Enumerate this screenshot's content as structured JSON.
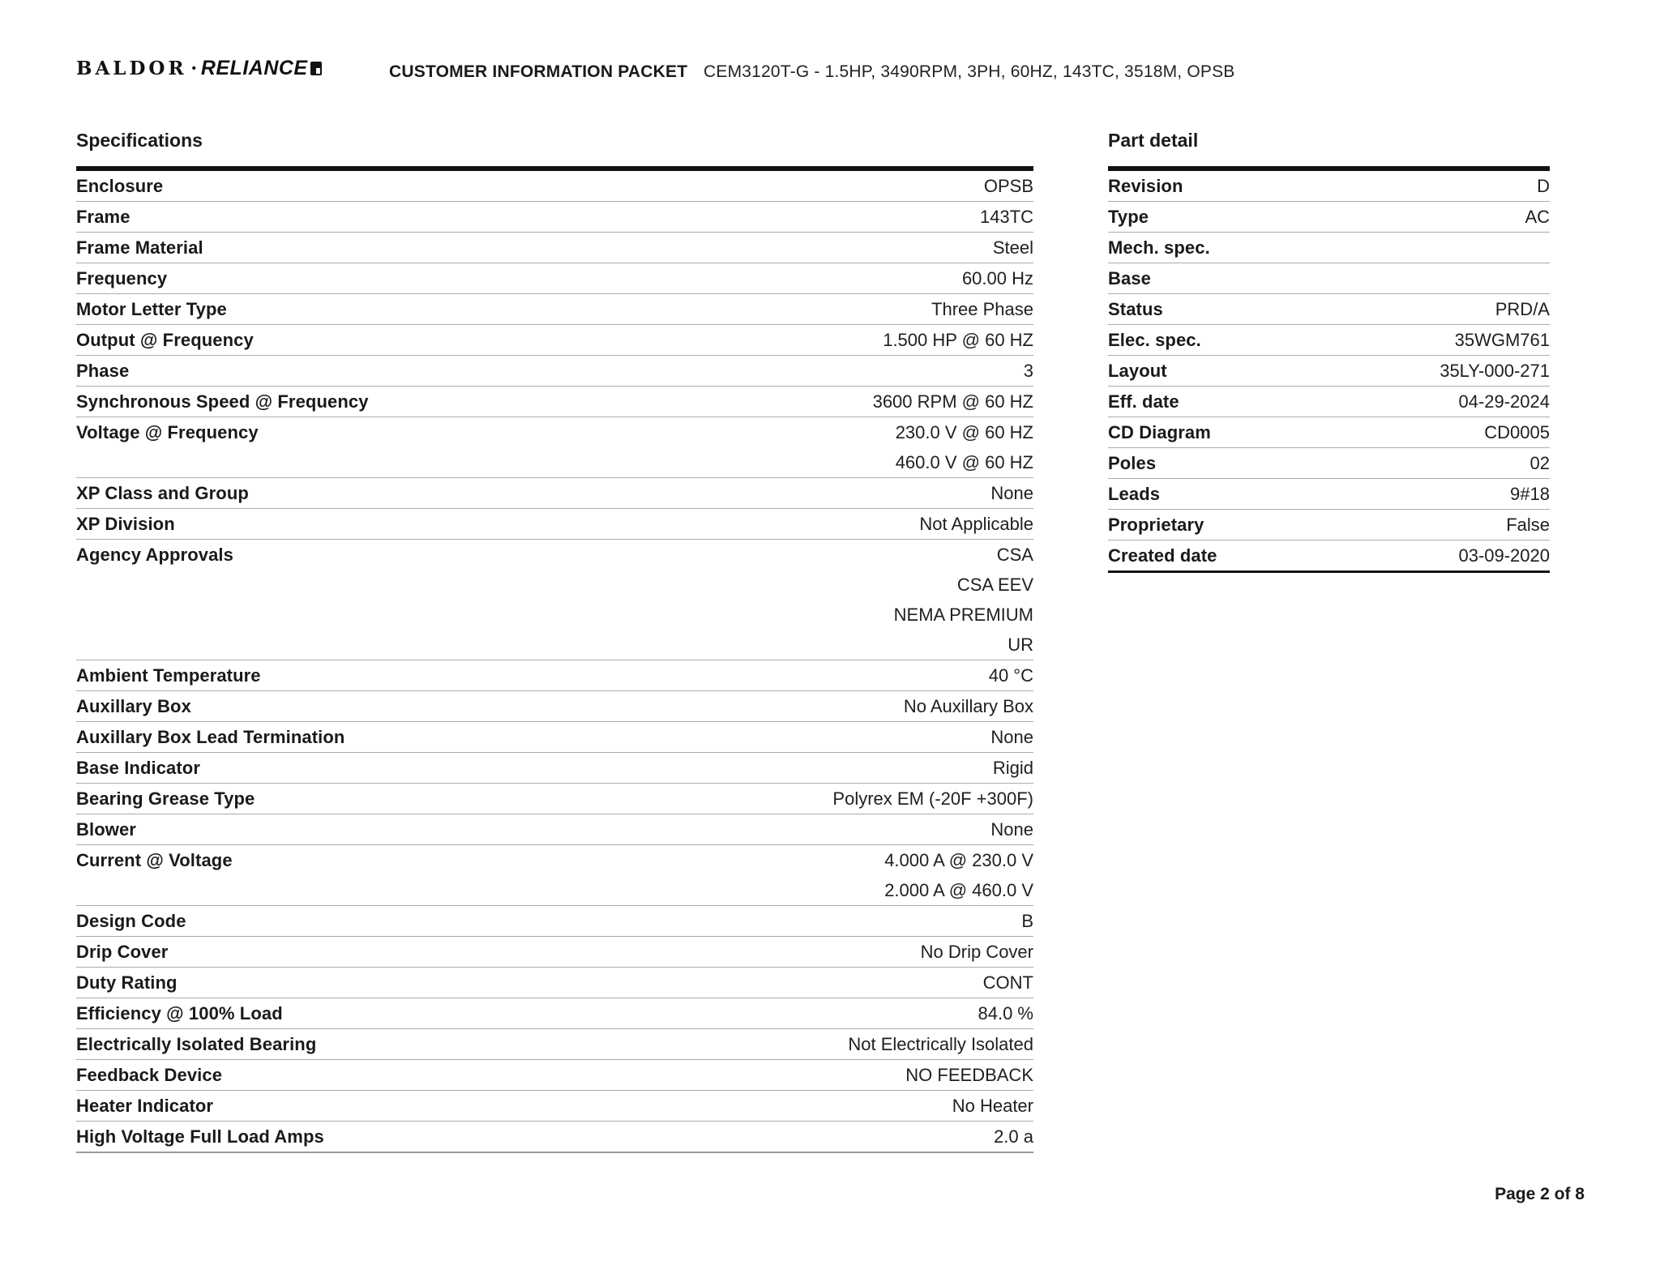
{
  "header": {
    "logo_baldor": "BALDOR",
    "logo_dot": "•",
    "logo_reliance": "RELIANCE",
    "doc_title": "CUSTOMER INFORMATION PACKET",
    "doc_subtitle": "CEM3120T-G - 1.5HP, 3490RPM, 3PH, 60HZ, 143TC, 3518M, OPSB"
  },
  "specifications": {
    "title": "Specifications",
    "rows": [
      {
        "label": "Enclosure",
        "value": "OPSB"
      },
      {
        "label": "Frame",
        "value": "143TC"
      },
      {
        "label": "Frame Material",
        "value": "Steel"
      },
      {
        "label": "Frequency",
        "value": "60.00 Hz"
      },
      {
        "label": "Motor Letter Type",
        "value": "Three Phase"
      },
      {
        "label": "Output @ Frequency",
        "value": "1.500 HP @ 60 HZ"
      },
      {
        "label": "Phase",
        "value": "3"
      },
      {
        "label": "Synchronous Speed @ Frequency",
        "value": "3600 RPM @ 60 HZ"
      },
      {
        "label": "Voltage @ Frequency",
        "value": [
          "230.0 V @ 60 HZ",
          "460.0 V @ 60 HZ"
        ]
      },
      {
        "label": "XP Class and Group",
        "value": "None"
      },
      {
        "label": "XP Division",
        "value": "Not Applicable"
      },
      {
        "label": "Agency Approvals",
        "value": [
          "CSA",
          "CSA EEV",
          "NEMA PREMIUM",
          "UR"
        ]
      },
      {
        "label": "Ambient Temperature",
        "value": "40 °C"
      },
      {
        "label": "Auxillary Box",
        "value": "No Auxillary Box"
      },
      {
        "label": "Auxillary Box Lead Termination",
        "value": "None"
      },
      {
        "label": "Base Indicator",
        "value": "Rigid"
      },
      {
        "label": "Bearing Grease Type",
        "value": "Polyrex EM (-20F +300F)"
      },
      {
        "label": "Blower",
        "value": "None"
      },
      {
        "label": "Current @ Voltage",
        "value": [
          "4.000 A @ 230.0 V",
          "2.000 A @ 460.0 V"
        ]
      },
      {
        "label": "Design Code",
        "value": "B"
      },
      {
        "label": "Drip Cover",
        "value": "No Drip Cover"
      },
      {
        "label": "Duty Rating",
        "value": "CONT"
      },
      {
        "label": "Efficiency @ 100% Load",
        "value": "84.0 %"
      },
      {
        "label": "Electrically Isolated Bearing",
        "value": "Not Electrically Isolated"
      },
      {
        "label": "Feedback Device",
        "value": "NO FEEDBACK"
      },
      {
        "label": "Heater Indicator",
        "value": "No Heater"
      },
      {
        "label": "High Voltage Full Load Amps",
        "value": "2.0 a"
      }
    ]
  },
  "part_detail": {
    "title": "Part detail",
    "rows": [
      {
        "label": "Revision",
        "value": "D"
      },
      {
        "label": "Type",
        "value": "AC"
      },
      {
        "label": "Mech. spec.",
        "value": ""
      },
      {
        "label": "Base",
        "value": ""
      },
      {
        "label": "Status",
        "value": "PRD/A"
      },
      {
        "label": "Elec. spec.",
        "value": "35WGM761"
      },
      {
        "label": "Layout",
        "value": "35LY-000-271"
      },
      {
        "label": "Eff. date",
        "value": "04-29-2024"
      },
      {
        "label": "CD Diagram",
        "value": "CD0005"
      },
      {
        "label": "Poles",
        "value": "02"
      },
      {
        "label": "Leads",
        "value": "9#18"
      },
      {
        "label": "Proprietary",
        "value": "False"
      },
      {
        "label": "Created date",
        "value": "03-09-2020"
      }
    ]
  },
  "footer": {
    "page_label": "Page 2 of 8"
  }
}
